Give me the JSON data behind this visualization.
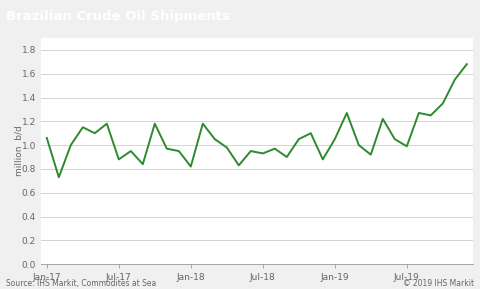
{
  "title": "Brazilian Crude Oil Shipments",
  "ylabel": "million  b/d",
  "source_left": "Source: IHS Markit, Commodites at Sea",
  "source_right": "© 2019 IHS Markit",
  "title_bg_color": "#787878",
  "title_text_color": "#ffffff",
  "line_color": "#2d8a2d",
  "bg_color": "#f0f0f0",
  "plot_bg_color": "#ffffff",
  "grid_color": "#cccccc",
  "ylim": [
    0.0,
    1.9
  ],
  "yticks": [
    0.0,
    0.2,
    0.4,
    0.6,
    0.8,
    1.0,
    1.2,
    1.4,
    1.6,
    1.8
  ],
  "x_values": [
    0,
    1,
    2,
    3,
    4,
    5,
    6,
    7,
    8,
    9,
    10,
    11,
    12,
    13,
    14,
    15,
    16,
    17,
    18,
    19,
    20,
    21,
    22,
    23,
    24,
    25,
    26,
    27,
    28,
    29,
    30,
    31,
    32,
    33,
    34,
    35
  ],
  "y_values": [
    1.06,
    0.73,
    1.0,
    1.15,
    1.1,
    1.18,
    0.88,
    0.95,
    0.84,
    1.18,
    0.97,
    0.95,
    0.82,
    1.18,
    1.05,
    0.98,
    0.83,
    0.95,
    0.93,
    0.97,
    0.9,
    1.05,
    1.1,
    0.88,
    1.05,
    1.27,
    1.0,
    0.92,
    1.22,
    1.05,
    0.99,
    1.27,
    1.25,
    1.35,
    1.55,
    1.68
  ],
  "xtick_positions": [
    0,
    6,
    12,
    18,
    24,
    30
  ],
  "xtick_labels": [
    "Jan-17",
    "Jul-17",
    "Jan-18",
    "Jul-18",
    "Jan-19",
    "Jul-19"
  ]
}
